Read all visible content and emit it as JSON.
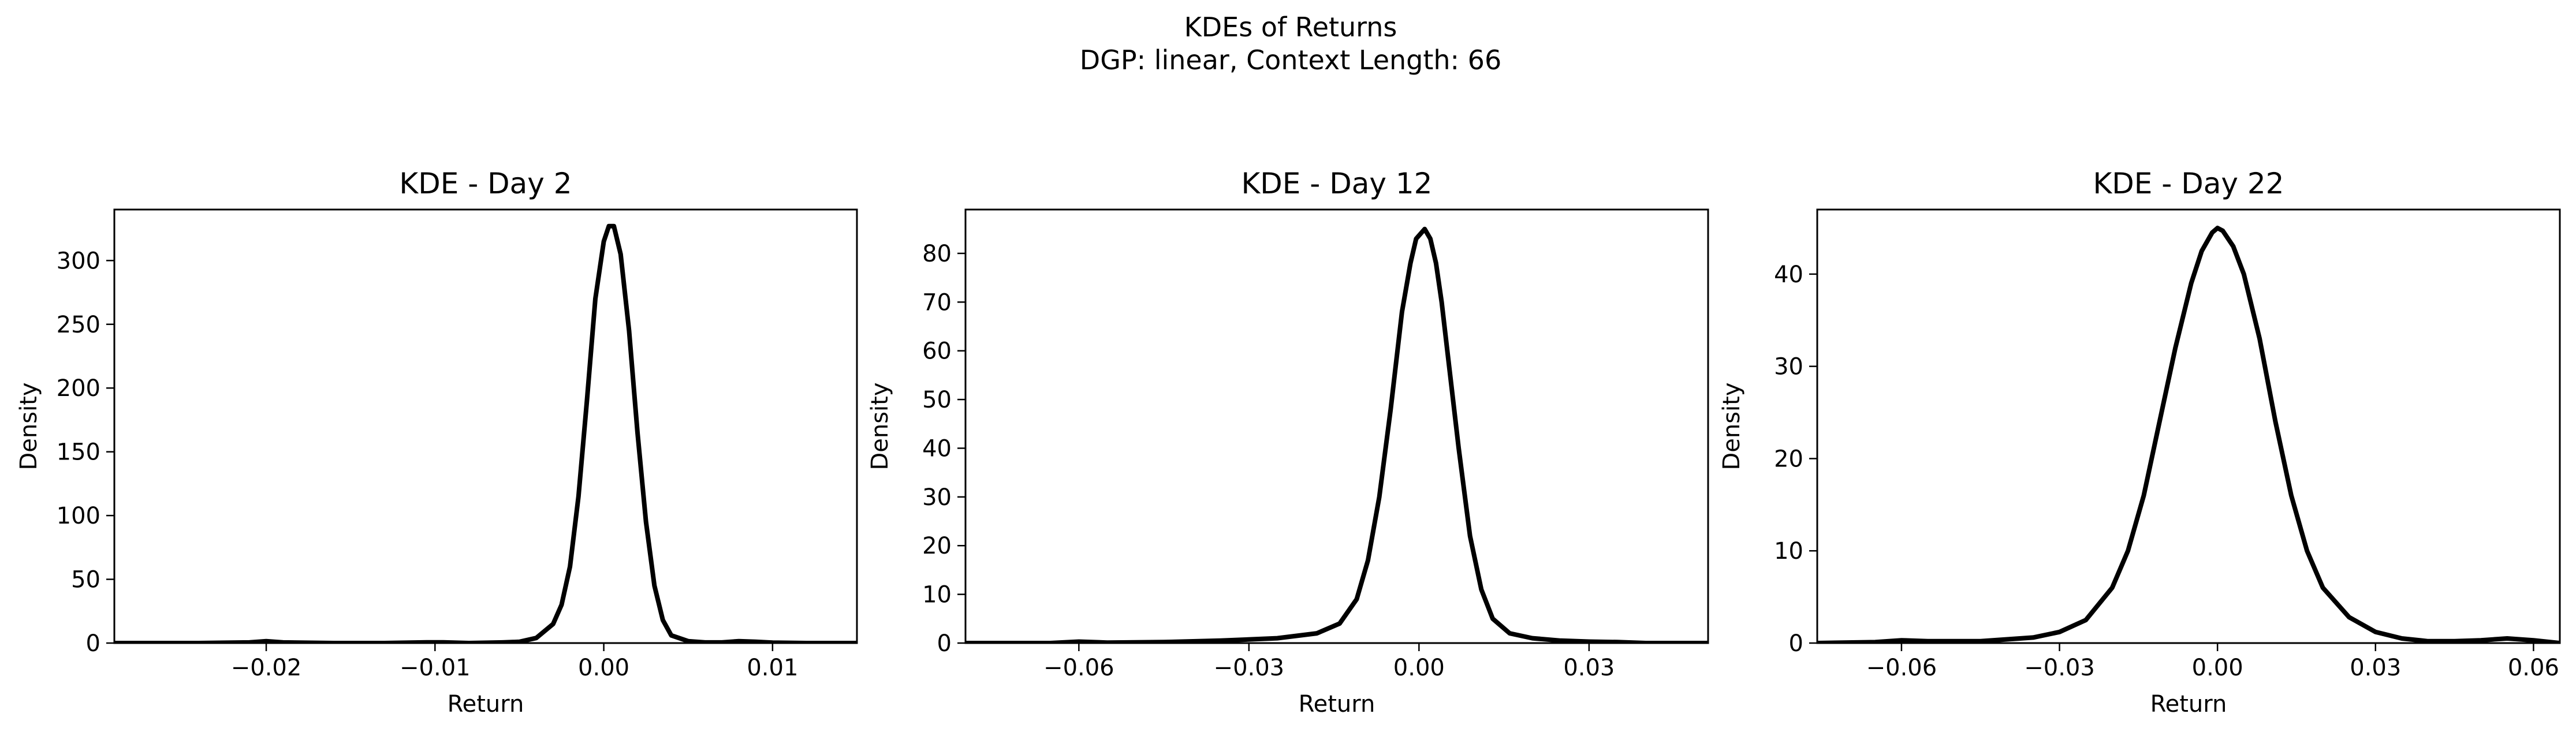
{
  "figure": {
    "title_line1": "KDEs of Returns",
    "title_line2": "DGP: linear, Context Length: 66"
  },
  "chart_data": [
    {
      "type": "line",
      "title": "KDE - Day 2",
      "xlabel": "Return",
      "ylabel": "Density",
      "xlim": [
        -0.029,
        0.015
      ],
      "ylim": [
        0,
        340
      ],
      "xticks": [
        -0.02,
        -0.01,
        0.0,
        0.01
      ],
      "xtick_labels": [
        "−0.02",
        "−0.01",
        "0.00",
        "0.01"
      ],
      "yticks": [
        0,
        50,
        100,
        150,
        200,
        250,
        300
      ],
      "ytick_labels": [
        "0",
        "50",
        "100",
        "150",
        "200",
        "250",
        "300"
      ],
      "series": [
        {
          "name": "KDE",
          "color": "#000000",
          "x": [
            -0.029,
            -0.024,
            -0.021,
            -0.02,
            -0.019,
            -0.016,
            -0.013,
            -0.0105,
            -0.0095,
            -0.008,
            -0.006,
            -0.005,
            -0.004,
            -0.003,
            -0.0025,
            -0.002,
            -0.0015,
            -0.001,
            -0.0005,
            0.0,
            0.0003,
            0.0006,
            0.001,
            0.0015,
            0.002,
            0.0025,
            0.003,
            0.0035,
            0.004,
            0.005,
            0.006,
            0.007,
            0.008,
            0.009,
            0.01,
            0.012,
            0.015
          ],
          "y": [
            0,
            0,
            0.5,
            1.5,
            0.5,
            0,
            0,
            0.6,
            0.6,
            0,
            0.5,
            1,
            4,
            15,
            30,
            60,
            115,
            190,
            270,
            315,
            327,
            327,
            305,
            245,
            165,
            95,
            45,
            18,
            6,
            1.5,
            0.5,
            0.5,
            1.5,
            1,
            0.3,
            0,
            0
          ]
        }
      ]
    },
    {
      "type": "line",
      "title": "KDE - Day 12",
      "xlabel": "Return",
      "ylabel": "Density",
      "xlim": [
        -0.08,
        0.051
      ],
      "ylim": [
        0,
        89
      ],
      "xticks": [
        -0.06,
        -0.03,
        0.0,
        0.03
      ],
      "xtick_labels": [
        "−0.06",
        "−0.03",
        "0.00",
        "0.03"
      ],
      "yticks": [
        0,
        10,
        20,
        30,
        40,
        50,
        60,
        70,
        80
      ],
      "ytick_labels": [
        "0",
        "10",
        "20",
        "30",
        "40",
        "50",
        "60",
        "70",
        "80"
      ],
      "series": [
        {
          "name": "KDE",
          "color": "#000000",
          "x": [
            -0.08,
            -0.065,
            -0.06,
            -0.055,
            -0.045,
            -0.035,
            -0.025,
            -0.018,
            -0.014,
            -0.011,
            -0.009,
            -0.007,
            -0.005,
            -0.003,
            -0.0015,
            -0.0005,
            0.001,
            0.002,
            0.003,
            0.004,
            0.005,
            0.007,
            0.009,
            0.011,
            0.013,
            0.016,
            0.02,
            0.025,
            0.03,
            0.035,
            0.04,
            0.051
          ],
          "y": [
            0,
            0,
            0.3,
            0.1,
            0.2,
            0.5,
            1,
            2,
            4,
            9,
            17,
            30,
            48,
            68,
            78,
            83,
            85,
            83,
            78,
            70,
            60,
            40,
            22,
            11,
            5,
            2,
            1,
            0.5,
            0.3,
            0.2,
            0,
            0
          ]
        }
      ]
    },
    {
      "type": "line",
      "title": "KDE - Day 22",
      "xlabel": "Return",
      "ylabel": "Density",
      "xlim": [
        -0.076,
        0.065
      ],
      "ylim": [
        0,
        47
      ],
      "xticks": [
        -0.06,
        -0.03,
        0.0,
        0.03,
        0.06
      ],
      "xtick_labels": [
        "−0.06",
        "−0.03",
        "0.00",
        "0.03",
        "0.06"
      ],
      "yticks": [
        0,
        10,
        20,
        30,
        40
      ],
      "ytick_labels": [
        "0",
        "10",
        "20",
        "30",
        "40"
      ],
      "series": [
        {
          "name": "KDE",
          "color": "#000000",
          "x": [
            -0.076,
            -0.065,
            -0.06,
            -0.055,
            -0.045,
            -0.035,
            -0.03,
            -0.025,
            -0.02,
            -0.017,
            -0.014,
            -0.011,
            -0.008,
            -0.005,
            -0.003,
            -0.001,
            0.0,
            0.001,
            0.003,
            0.005,
            0.008,
            0.011,
            0.014,
            0.017,
            0.02,
            0.025,
            0.03,
            0.035,
            0.04,
            0.045,
            0.05,
            0.055,
            0.06,
            0.065
          ],
          "y": [
            0,
            0.1,
            0.3,
            0.2,
            0.2,
            0.6,
            1.2,
            2.5,
            6,
            10,
            16,
            24,
            32,
            39,
            42.5,
            44.5,
            45,
            44.7,
            43,
            40,
            33,
            24,
            16,
            10,
            6,
            2.8,
            1.2,
            0.5,
            0.2,
            0.2,
            0.3,
            0.5,
            0.3,
            0
          ]
        }
      ]
    }
  ]
}
